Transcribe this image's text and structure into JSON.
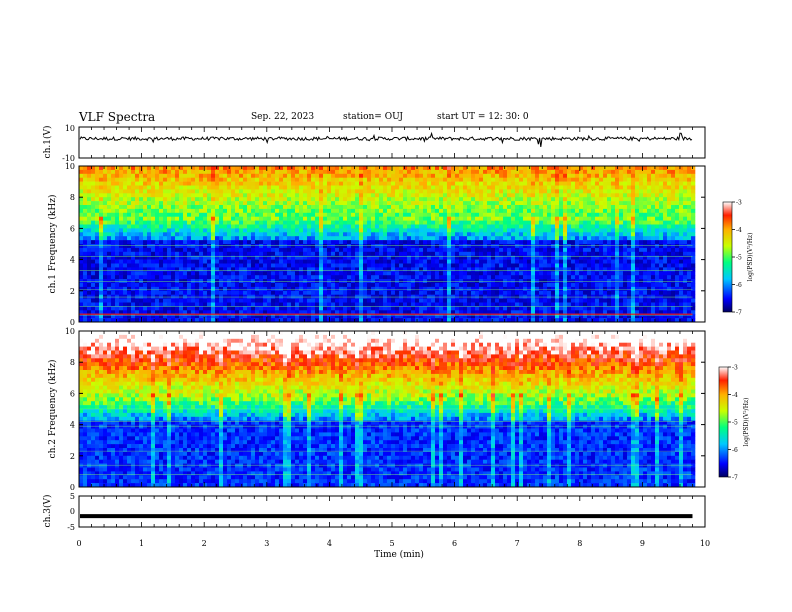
{
  "header": {
    "title": "VLF Spectra",
    "date": "Sep. 22, 2023",
    "station": "station= OUJ",
    "start": "start  UT =   12: 30: 0"
  },
  "chart_data": [
    {
      "type": "line",
      "panel": "ch1-waveform",
      "ylabel": "ch.1(V)",
      "ylim": [
        -10,
        10
      ],
      "yticks": [
        "10",
        "-10"
      ],
      "baseline": 2.5
    },
    {
      "type": "heatmap",
      "panel": "ch1-spectrogram",
      "ylabel": "ch.1 Frequency (kHz)",
      "ylim": [
        0,
        10
      ],
      "yticks": [
        "0",
        "2",
        "4",
        "6",
        "8",
        "10"
      ],
      "colorbar": {
        "label": "log(PSD)(V²/Hz)",
        "range": [
          -7,
          -3
        ],
        "ticks": [
          "-3",
          "-4",
          "-5",
          "-6",
          "-7"
        ]
      }
    },
    {
      "type": "heatmap",
      "panel": "ch2-spectrogram",
      "ylabel": "ch.2 Frequency (kHz)",
      "ylim": [
        0,
        10
      ],
      "yticks": [
        "0",
        "2",
        "4",
        "6",
        "8",
        "10"
      ],
      "colorbar": {
        "label": "log(PSD)(V²/Hz)",
        "range": [
          -7,
          -3
        ],
        "ticks": [
          "-3",
          "-4",
          "-5",
          "-6",
          "-7"
        ]
      }
    },
    {
      "type": "line",
      "panel": "ch3-waveform",
      "ylabel": "ch.3(V)",
      "ylim": [
        -5,
        5
      ],
      "yticks": [
        "5",
        "0",
        "-5"
      ],
      "baseline": -1.5
    }
  ],
  "xaxis": {
    "label": "Time (min)",
    "range": [
      0,
      10
    ],
    "ticks": [
      "0",
      "1",
      "2",
      "3",
      "4",
      "5",
      "6",
      "7",
      "8",
      "9",
      "10"
    ],
    "data_end": 9.8
  },
  "colors": {
    "panel_border": "#000000",
    "waveform": "#000000"
  }
}
